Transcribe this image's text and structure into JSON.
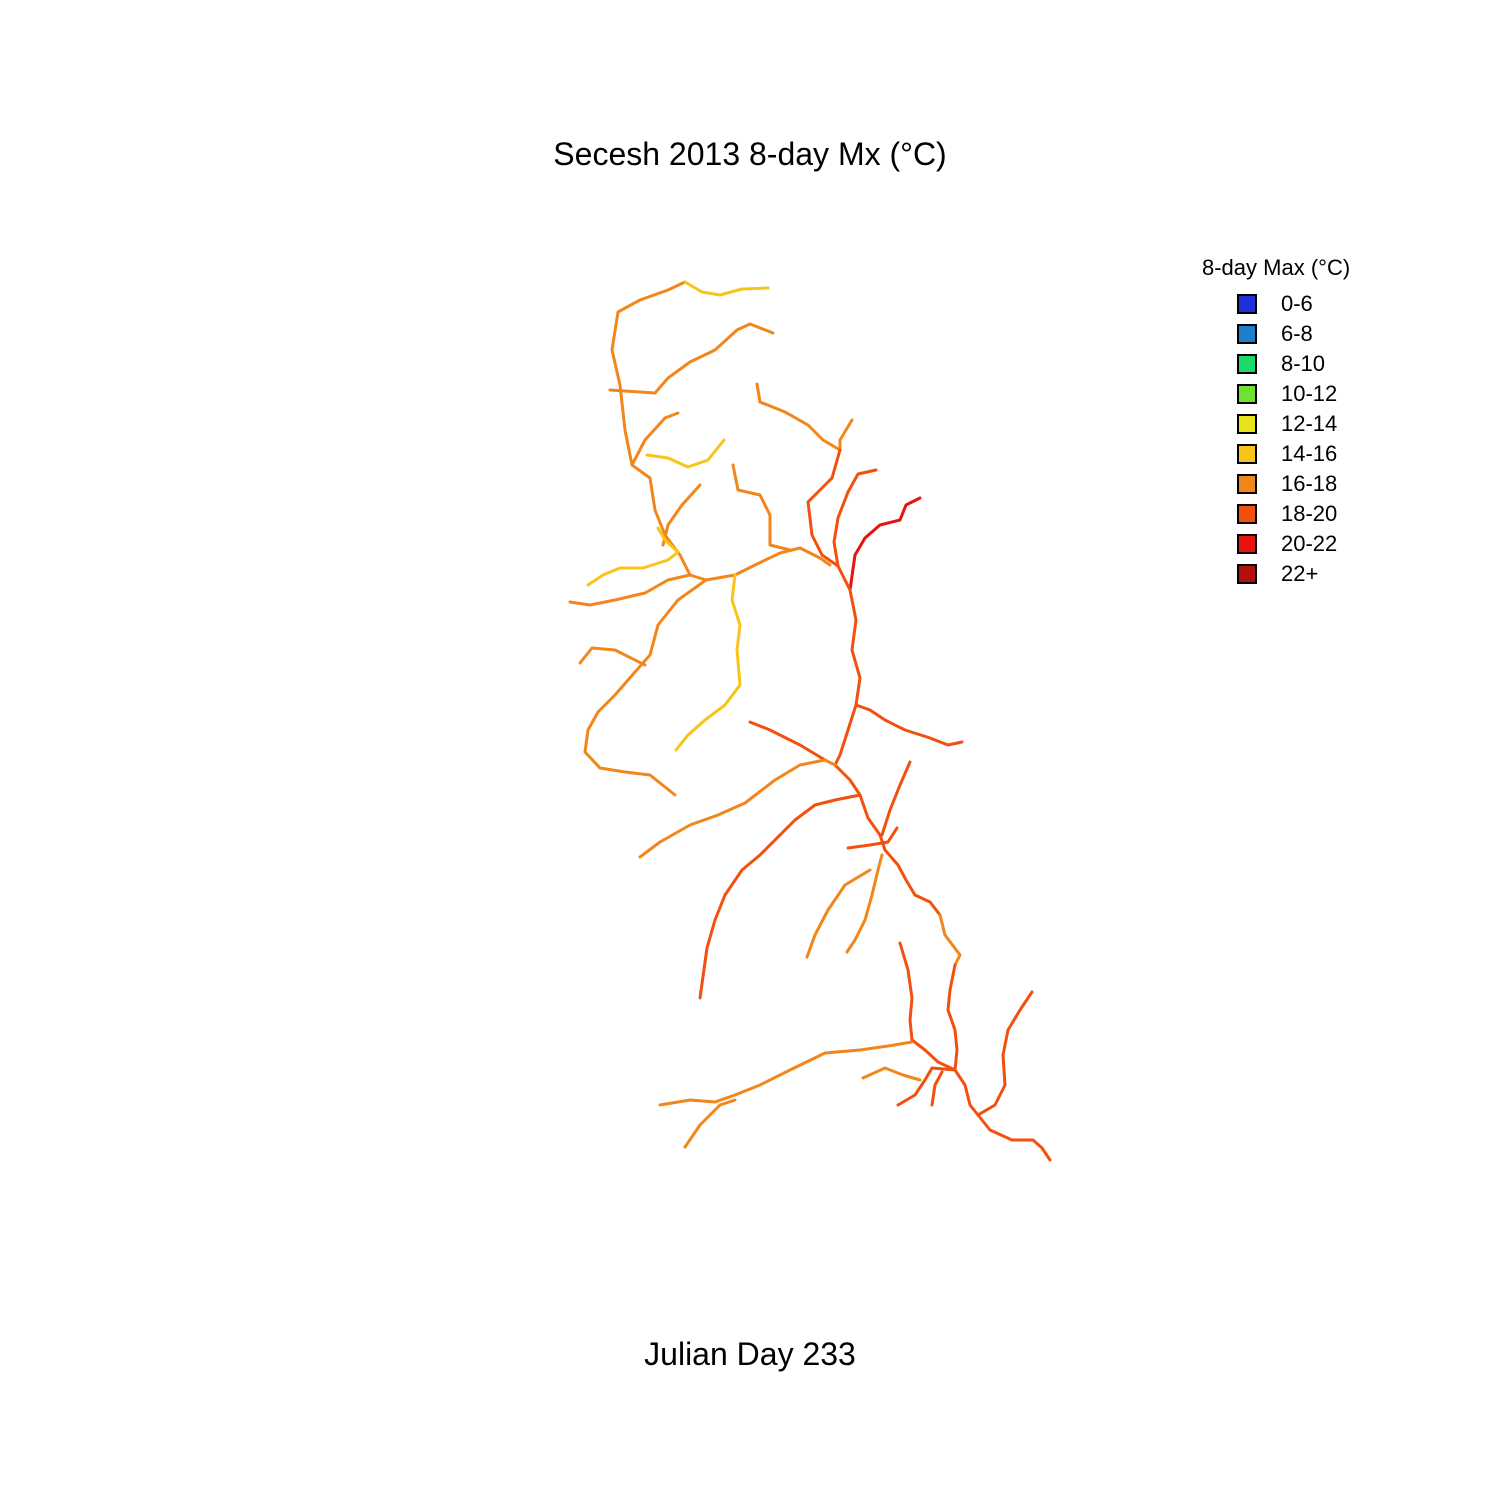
{
  "title": "Secesh 2013 8-day Mx (°C)",
  "subtitle": "Julian Day 233",
  "legend": {
    "title": "8-day Max (°C)",
    "items": [
      {
        "label": "0-6",
        "color": "#1c31d6"
      },
      {
        "label": "6-8",
        "color": "#1d80cf"
      },
      {
        "label": "8-10",
        "color": "#1fd86a"
      },
      {
        "label": "10-12",
        "color": "#6fe134"
      },
      {
        "label": "12-14",
        "color": "#e8e41b"
      },
      {
        "label": "14-16",
        "color": "#f8c419"
      },
      {
        "label": "16-18",
        "color": "#f3861b"
      },
      {
        "label": "18-20",
        "color": "#f3500f"
      },
      {
        "label": "20-22",
        "color": "#e8120f"
      },
      {
        "label": "22+",
        "color": "#b2100e"
      }
    ]
  },
  "map_data": {
    "type": "stream-network",
    "segments": [
      {
        "cls": 6,
        "pts": [
          [
            620,
            385
          ],
          [
            612,
            350
          ],
          [
            618,
            312
          ],
          [
            640,
            300
          ],
          [
            668,
            290
          ],
          [
            685,
            282
          ]
        ]
      },
      {
        "cls": 5,
        "pts": [
          [
            685,
            282
          ],
          [
            702,
            292
          ],
          [
            720,
            295
          ],
          [
            742,
            289
          ],
          [
            768,
            288
          ]
        ]
      },
      {
        "cls": 6,
        "pts": [
          [
            655,
            393
          ],
          [
            668,
            378
          ],
          [
            690,
            362
          ],
          [
            715,
            350
          ],
          [
            737,
            330
          ],
          [
            750,
            324
          ],
          [
            773,
            333
          ]
        ]
      },
      {
        "cls": 6,
        "pts": [
          [
            610,
            390
          ],
          [
            640,
            392
          ],
          [
            655,
            393
          ]
        ]
      },
      {
        "cls": 6,
        "pts": [
          [
            620,
            385
          ],
          [
            625,
            430
          ],
          [
            632,
            465
          ],
          [
            650,
            478
          ],
          [
            655,
            510
          ],
          [
            665,
            535
          ],
          [
            680,
            555
          ],
          [
            690,
            575
          ],
          [
            706,
            580
          ],
          [
            735,
            575
          ],
          [
            755,
            565
          ],
          [
            780,
            553
          ],
          [
            800,
            548
          ],
          [
            820,
            558
          ],
          [
            830,
            565
          ]
        ]
      },
      {
        "cls": 6,
        "pts": [
          [
            632,
            465
          ],
          [
            645,
            440
          ],
          [
            665,
            418
          ],
          [
            678,
            413
          ]
        ]
      },
      {
        "cls": 5,
        "pts": [
          [
            647,
            455
          ],
          [
            668,
            458
          ],
          [
            688,
            467
          ],
          [
            708,
            460
          ],
          [
            724,
            440
          ]
        ]
      },
      {
        "cls": 6,
        "pts": [
          [
            700,
            485
          ],
          [
            682,
            505
          ],
          [
            668,
            525
          ],
          [
            663,
            545
          ]
        ]
      },
      {
        "cls": 5,
        "pts": [
          [
            658,
            528
          ],
          [
            665,
            540
          ],
          [
            678,
            552
          ]
        ]
      },
      {
        "cls": 6,
        "pts": [
          [
            733,
            465
          ],
          [
            738,
            490
          ],
          [
            760,
            495
          ],
          [
            770,
            515
          ],
          [
            770,
            545
          ],
          [
            790,
            550
          ]
        ]
      },
      {
        "cls": 6,
        "pts": [
          [
            757,
            384
          ],
          [
            760,
            402
          ],
          [
            785,
            412
          ],
          [
            808,
            425
          ],
          [
            823,
            440
          ],
          [
            840,
            450
          ]
        ]
      },
      {
        "cls": 6,
        "pts": [
          [
            852,
            420
          ],
          [
            840,
            440
          ],
          [
            840,
            450
          ]
        ]
      },
      {
        "cls": 7,
        "pts": [
          [
            840,
            450
          ],
          [
            832,
            478
          ],
          [
            815,
            495
          ],
          [
            808,
            502
          ],
          [
            812,
            535
          ],
          [
            822,
            555
          ],
          [
            838,
            566
          ]
        ]
      },
      {
        "cls": 7,
        "pts": [
          [
            876,
            470
          ],
          [
            858,
            474
          ],
          [
            848,
            492
          ],
          [
            838,
            518
          ],
          [
            834,
            542
          ],
          [
            838,
            566
          ]
        ]
      },
      {
        "cls": 8,
        "pts": [
          [
            920,
            498
          ],
          [
            906,
            505
          ],
          [
            900,
            520
          ],
          [
            880,
            525
          ],
          [
            865,
            538
          ],
          [
            855,
            555
          ],
          [
            850,
            590
          ]
        ]
      },
      {
        "cls": 7,
        "pts": [
          [
            838,
            566
          ],
          [
            850,
            590
          ],
          [
            856,
            620
          ],
          [
            852,
            650
          ],
          [
            860,
            678
          ],
          [
            856,
            705
          ],
          [
            848,
            730
          ],
          [
            840,
            755
          ],
          [
            835,
            765
          ]
        ]
      },
      {
        "cls": 5,
        "pts": [
          [
            588,
            585
          ],
          [
            603,
            575
          ],
          [
            620,
            568
          ],
          [
            643,
            568
          ],
          [
            668,
            560
          ],
          [
            678,
            552
          ]
        ]
      },
      {
        "cls": 6,
        "pts": [
          [
            570,
            602
          ],
          [
            590,
            605
          ],
          [
            615,
            600
          ],
          [
            645,
            593
          ],
          [
            668,
            580
          ],
          [
            690,
            575
          ]
        ]
      },
      {
        "cls": 6,
        "pts": [
          [
            706,
            580
          ],
          [
            678,
            600
          ],
          [
            658,
            625
          ],
          [
            650,
            655
          ],
          [
            635,
            672
          ],
          [
            615,
            695
          ],
          [
            598,
            712
          ],
          [
            588,
            730
          ],
          [
            585,
            752
          ],
          [
            600,
            768
          ],
          [
            625,
            772
          ],
          [
            650,
            775
          ],
          [
            675,
            795
          ]
        ]
      },
      {
        "cls": 6,
        "pts": [
          [
            580,
            663
          ],
          [
            592,
            648
          ],
          [
            615,
            650
          ],
          [
            645,
            665
          ]
        ]
      },
      {
        "cls": 5,
        "pts": [
          [
            735,
            575
          ],
          [
            732,
            600
          ],
          [
            740,
            625
          ],
          [
            737,
            650
          ],
          [
            740,
            685
          ],
          [
            725,
            705
          ],
          [
            705,
            720
          ],
          [
            688,
            735
          ],
          [
            676,
            750
          ]
        ]
      },
      {
        "cls": 7,
        "pts": [
          [
            856,
            705
          ],
          [
            870,
            710
          ],
          [
            885,
            720
          ],
          [
            905,
            730
          ],
          [
            930,
            738
          ],
          [
            948,
            745
          ],
          [
            962,
            742
          ]
        ]
      },
      {
        "cls": 7,
        "pts": [
          [
            750,
            722
          ],
          [
            770,
            730
          ],
          [
            800,
            745
          ],
          [
            825,
            760
          ]
        ]
      },
      {
        "cls": 7,
        "pts": [
          [
            835,
            765
          ],
          [
            850,
            780
          ],
          [
            860,
            795
          ],
          [
            868,
            818
          ],
          [
            880,
            835
          ],
          [
            885,
            850
          ]
        ]
      },
      {
        "cls": 6,
        "pts": [
          [
            640,
            857
          ],
          [
            660,
            842
          ],
          [
            690,
            825
          ],
          [
            718,
            815
          ],
          [
            745,
            803
          ],
          [
            775,
            780
          ],
          [
            800,
            765
          ],
          [
            825,
            760
          ],
          [
            835,
            765
          ]
        ]
      },
      {
        "cls": 7,
        "pts": [
          [
            910,
            762
          ],
          [
            900,
            785
          ],
          [
            890,
            810
          ],
          [
            882,
            835
          ]
        ]
      },
      {
        "cls": 7,
        "pts": [
          [
            860,
            795
          ],
          [
            835,
            800
          ],
          [
            815,
            805
          ],
          [
            795,
            820
          ],
          [
            780,
            835
          ],
          [
            760,
            855
          ],
          [
            742,
            870
          ],
          [
            725,
            895
          ],
          [
            715,
            920
          ],
          [
            707,
            948
          ],
          [
            700,
            998
          ]
        ]
      },
      {
        "cls": 7,
        "pts": [
          [
            897,
            828
          ],
          [
            888,
            842
          ],
          [
            870,
            845
          ],
          [
            848,
            848
          ]
        ]
      },
      {
        "cls": 6,
        "pts": [
          [
            882,
            855
          ],
          [
            878,
            870
          ],
          [
            872,
            895
          ],
          [
            865,
            920
          ],
          [
            855,
            940
          ],
          [
            847,
            952
          ]
        ]
      },
      {
        "cls": 6,
        "pts": [
          [
            870,
            870
          ],
          [
            845,
            885
          ],
          [
            828,
            910
          ],
          [
            815,
            935
          ],
          [
            807,
            957
          ]
        ]
      },
      {
        "cls": 7,
        "pts": [
          [
            885,
            850
          ],
          [
            898,
            865
          ],
          [
            906,
            880
          ],
          [
            915,
            895
          ],
          [
            930,
            902
          ],
          [
            940,
            915
          ]
        ]
      },
      {
        "cls": 6,
        "pts": [
          [
            940,
            915
          ],
          [
            945,
            935
          ],
          [
            960,
            955
          ],
          [
            955,
            965
          ]
        ]
      },
      {
        "cls": 7,
        "pts": [
          [
            955,
            965
          ],
          [
            950,
            990
          ],
          [
            948,
            1010
          ],
          [
            955,
            1030
          ],
          [
            957,
            1050
          ],
          [
            955,
            1070
          ]
        ]
      },
      {
        "cls": 7,
        "pts": [
          [
            900,
            943
          ],
          [
            908,
            970
          ],
          [
            912,
            998
          ],
          [
            910,
            1020
          ],
          [
            912,
            1040
          ]
        ]
      },
      {
        "cls": 7,
        "pts": [
          [
            912,
            1040
          ],
          [
            925,
            1050
          ],
          [
            938,
            1062
          ],
          [
            955,
            1070
          ]
        ]
      },
      {
        "cls": 6,
        "pts": [
          [
            660,
            1105
          ],
          [
            690,
            1100
          ],
          [
            715,
            1102
          ],
          [
            735,
            1095
          ],
          [
            760,
            1085
          ],
          [
            790,
            1070
          ],
          [
            825,
            1053
          ],
          [
            860,
            1050
          ],
          [
            888,
            1046
          ],
          [
            912,
            1042
          ]
        ]
      },
      {
        "cls": 6,
        "pts": [
          [
            685,
            1147
          ],
          [
            700,
            1125
          ],
          [
            720,
            1105
          ],
          [
            735,
            1100
          ]
        ]
      },
      {
        "cls": 6,
        "pts": [
          [
            863,
            1078
          ],
          [
            885,
            1068
          ],
          [
            903,
            1075
          ],
          [
            920,
            1080
          ]
        ]
      },
      {
        "cls": 7,
        "pts": [
          [
            898,
            1105
          ],
          [
            915,
            1095
          ],
          [
            925,
            1080
          ],
          [
            932,
            1068
          ],
          [
            955,
            1070
          ]
        ]
      },
      {
        "cls": 7,
        "pts": [
          [
            932,
            1105
          ],
          [
            935,
            1085
          ],
          [
            942,
            1072
          ]
        ]
      },
      {
        "cls": 7,
        "pts": [
          [
            1032,
            992
          ],
          [
            1020,
            1010
          ],
          [
            1008,
            1030
          ],
          [
            1003,
            1055
          ],
          [
            1005,
            1085
          ],
          [
            995,
            1105
          ],
          [
            978,
            1115
          ]
        ]
      },
      {
        "cls": 7,
        "pts": [
          [
            955,
            1070
          ],
          [
            965,
            1085
          ],
          [
            970,
            1105
          ],
          [
            978,
            1115
          ],
          [
            990,
            1130
          ],
          [
            1012,
            1140
          ],
          [
            1033,
            1140
          ],
          [
            1042,
            1148
          ],
          [
            1050,
            1160
          ]
        ]
      }
    ]
  }
}
